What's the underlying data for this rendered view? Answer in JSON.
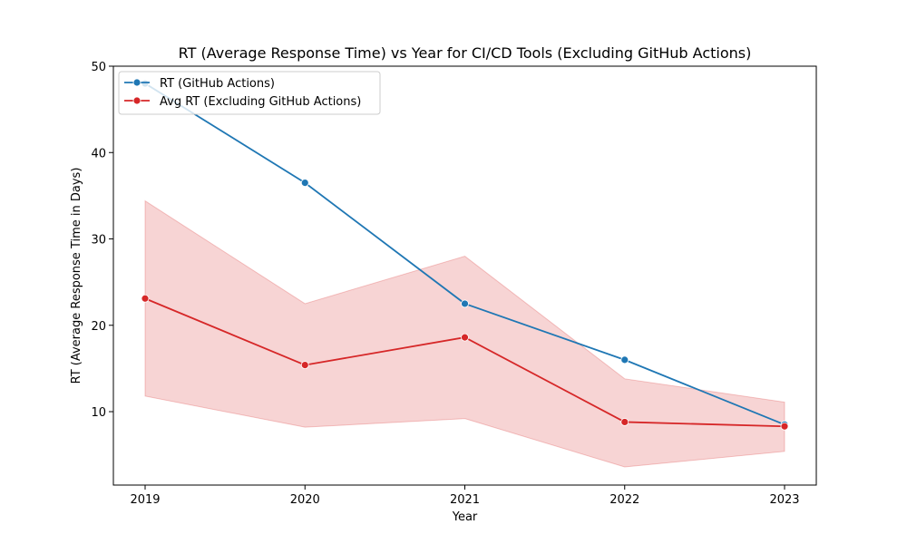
{
  "chart_data": {
    "type": "line",
    "title": "RT (Average Response Time) vs Year for CI/CD Tools (Excluding GitHub Actions)",
    "xlabel": "Year",
    "ylabel": "RT (Average Response Time in Days)",
    "x": [
      "2019",
      "2020",
      "2021",
      "2022",
      "2023"
    ],
    "ylim": [
      1.5,
      50
    ],
    "yticks": [
      10,
      20,
      30,
      40,
      50
    ],
    "grid": false,
    "legend_position": "top-left",
    "series": [
      {
        "name": "RT (GitHub Actions)",
        "color": "#1f77b4",
        "marker": "circle",
        "values": [
          48.0,
          36.5,
          22.5,
          16.0,
          8.5
        ]
      },
      {
        "name": "Avg RT (Excluding GitHub Actions)",
        "color": "#d62728",
        "marker": "circle",
        "values": [
          23.1,
          15.4,
          18.6,
          8.8,
          8.3
        ],
        "band": {
          "lower": [
            11.8,
            8.2,
            9.2,
            3.6,
            5.4
          ],
          "upper": [
            34.4,
            22.5,
            28.0,
            13.8,
            11.1
          ],
          "fill": "#d62728",
          "fill_opacity": 0.2
        }
      }
    ]
  }
}
